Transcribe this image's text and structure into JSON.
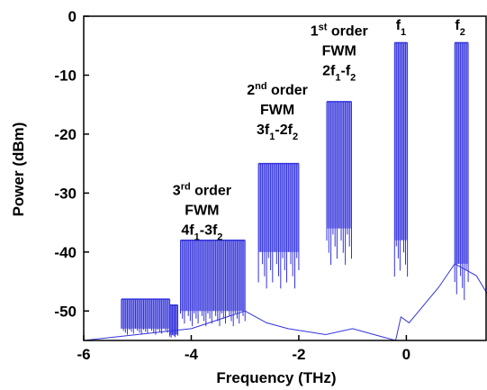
{
  "chart_data": {
    "type": "line",
    "xlabel": "Frequency (THz)",
    "ylabel": "Power (dBm)",
    "xlim": [
      -6,
      1.5
    ],
    "ylim": [
      -55,
      0
    ],
    "x_ticks": [
      -6,
      -4,
      -2,
      0
    ],
    "x_tick_labels": [
      "-6",
      "-4",
      "-2",
      "0"
    ],
    "y_ticks": [
      0,
      -10,
      -20,
      -30,
      -40,
      -50
    ],
    "y_tick_labels": [
      "0",
      "-10",
      "-20",
      "-30",
      "-40",
      "-50"
    ],
    "series_color": "#3333dd",
    "noise_floor": [
      {
        "x": -6.0,
        "y": -55
      },
      {
        "x": -4.0,
        "y": -53
      },
      {
        "x": -3.0,
        "y": -50
      },
      {
        "x": -2.6,
        "y": -52
      },
      {
        "x": -2.2,
        "y": -53
      },
      {
        "x": -1.5,
        "y": -54
      },
      {
        "x": -1.0,
        "y": -53
      },
      {
        "x": -0.6,
        "y": -54
      },
      {
        "x": -0.2,
        "y": -55
      },
      {
        "x": -0.1,
        "y": -51
      },
      {
        "x": 0.05,
        "y": -52
      },
      {
        "x": 0.6,
        "y": -46
      },
      {
        "x": 0.9,
        "y": -42
      },
      {
        "x": 1.3,
        "y": -44
      },
      {
        "x": 1.5,
        "y": -47
      }
    ],
    "bands": [
      {
        "name": "3rd order FWM (low)",
        "x_start": -5.3,
        "x_end": -4.4,
        "top": -48,
        "dip": -53
      },
      {
        "name": "3rd order FWM (shoulder)",
        "x_start": -4.4,
        "x_end": -4.25,
        "top": -49,
        "dip": -54
      },
      {
        "name": "3rd order FWM",
        "x_start": -4.2,
        "x_end": -3.0,
        "top": -38,
        "dip": -50
      },
      {
        "name": "2nd order FWM",
        "x_start": -2.75,
        "x_end": -2.0,
        "top": -25,
        "dip": -40
      },
      {
        "name": "1st order FWM",
        "x_start": -1.48,
        "x_end": -1.02,
        "top": -14.5,
        "dip": -36
      },
      {
        "name": "f1",
        "x_start": -0.22,
        "x_end": 0.02,
        "top": -4.5,
        "dip": -38
      },
      {
        "name": "f2",
        "x_start": 0.9,
        "x_end": 1.15,
        "top": -4.5,
        "dip": -42
      }
    ],
    "annotations": [
      {
        "id": "first-order",
        "lines": [
          [
            {
              "t": "1"
            },
            {
              "t": "st",
              "sup": true
            },
            {
              "t": " order"
            }
          ],
          [
            {
              "t": "FWM"
            }
          ],
          [
            {
              "t": "2f"
            },
            {
              "t": "1",
              "sub": true
            },
            {
              "t": "-f"
            },
            {
              "t": "2",
              "sub": true
            }
          ]
        ],
        "x": -1.25,
        "y": -3.3
      },
      {
        "id": "second-order",
        "lines": [
          [
            {
              "t": "2"
            },
            {
              "t": "nd",
              "sup": true
            },
            {
              "t": " order"
            }
          ],
          [
            {
              "t": "FWM"
            }
          ],
          [
            {
              "t": "3f"
            },
            {
              "t": "1",
              "sub": true
            },
            {
              "t": "-2f"
            },
            {
              "t": "2",
              "sub": true
            }
          ]
        ],
        "x": -2.4,
        "y": -13.3
      },
      {
        "id": "third-order",
        "lines": [
          [
            {
              "t": "3"
            },
            {
              "t": "rd",
              "sup": true
            },
            {
              "t": " order"
            }
          ],
          [
            {
              "t": "FWM"
            }
          ],
          [
            {
              "t": "4f"
            },
            {
              "t": "1",
              "sub": true
            },
            {
              "t": "-3f"
            },
            {
              "t": "2",
              "sub": true
            }
          ]
        ],
        "x": -3.8,
        "y": -30.3
      },
      {
        "id": "f1-label",
        "lines": [
          [
            {
              "t": "f"
            },
            {
              "t": "1",
              "sub": true
            }
          ]
        ],
        "x": -0.1,
        "y": -2.3
      },
      {
        "id": "f2-label",
        "lines": [
          [
            {
              "t": "f"
            },
            {
              "t": "2",
              "sub": true
            }
          ]
        ],
        "x": 1.0,
        "y": -2.3
      }
    ]
  }
}
